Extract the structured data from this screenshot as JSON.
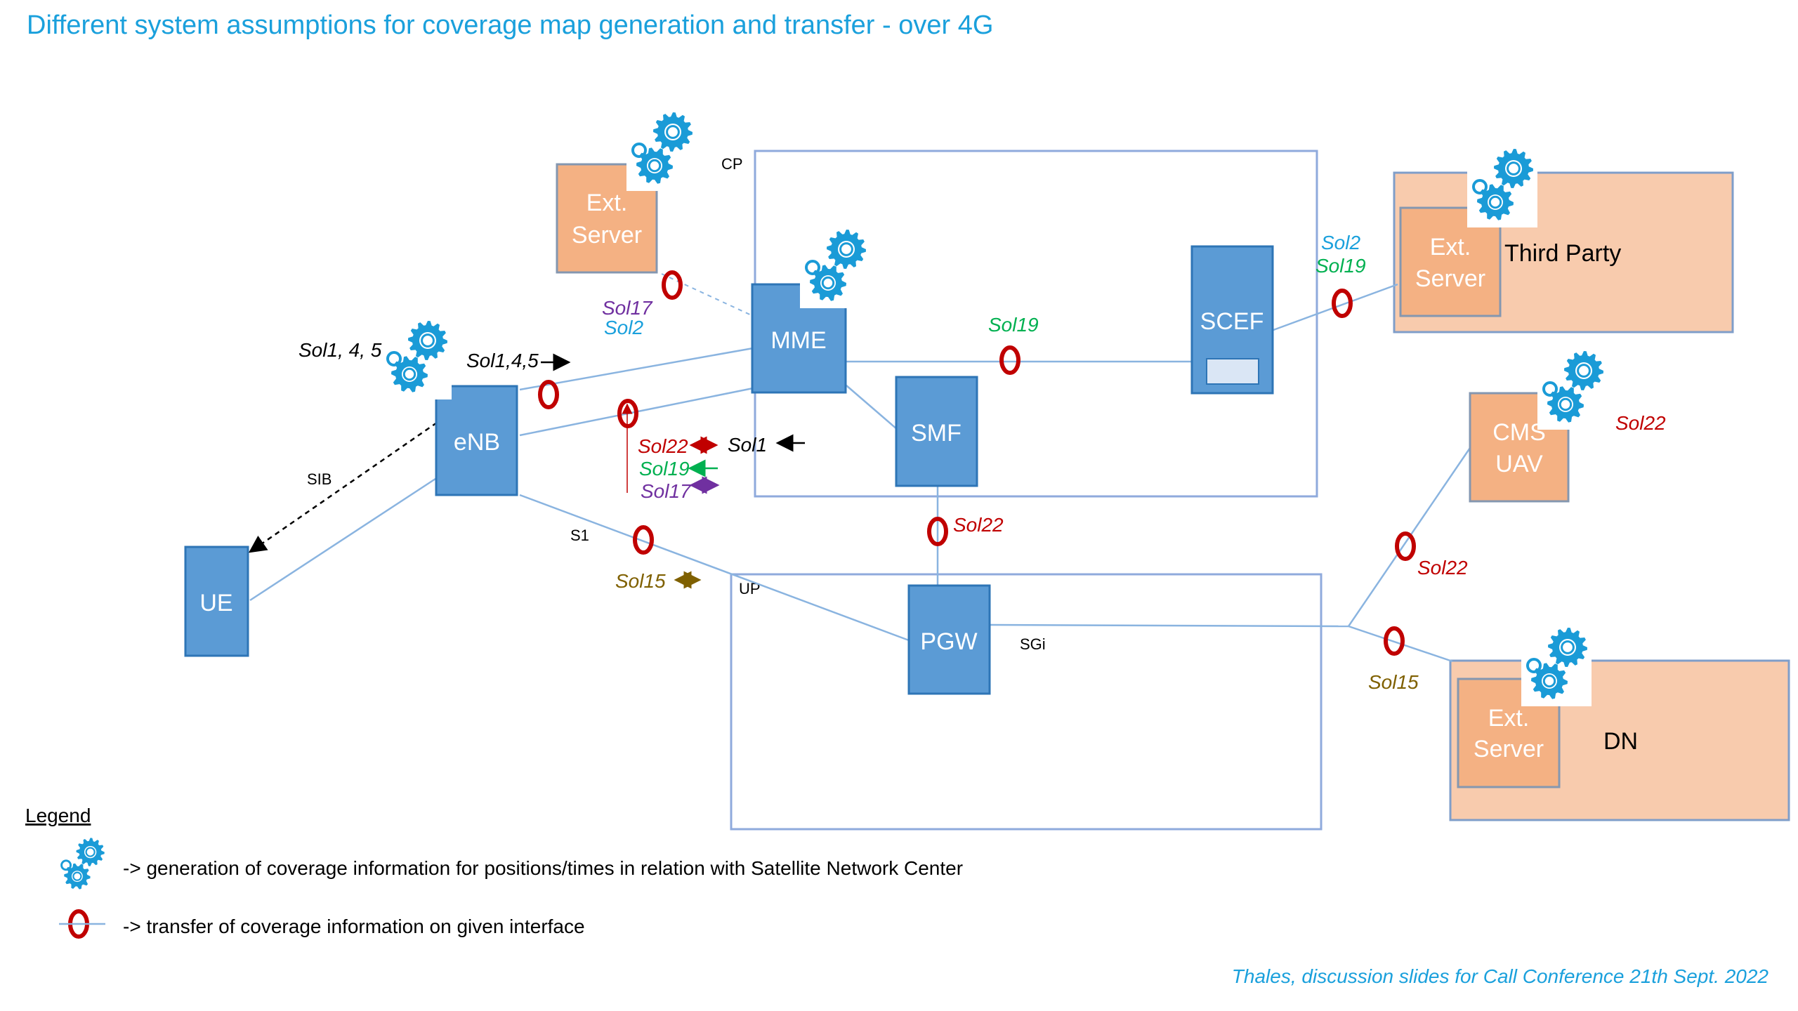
{
  "title": "Different system assumptions for coverage map generation and transfer - over 4G",
  "nodes": {
    "ext_server_top": "Ext.\nServer",
    "mme": "MME",
    "smf": "SMF",
    "scef": "SCEF",
    "enb": "eNB",
    "ue": "UE",
    "pgw": "PGW",
    "ext_server_third_party": "Ext.\nServer",
    "third_party": "Third Party",
    "cms_uav": "CMS\nUAV",
    "ext_server_dn": "Ext.\nServer",
    "dn": "DN"
  },
  "planes": {
    "cp": "CP",
    "up": "UP"
  },
  "interfaces": {
    "sib": "SIB",
    "s1": "S1",
    "sgi": "SGi"
  },
  "solutions": {
    "sol_1_4_5_gen": "Sol1, 4, 5",
    "sol_1_4_5_arrow": "Sol1,4,5",
    "sol17_mme": "Sol17",
    "sol2_mme": "Sol2",
    "sol19_mid": "Sol19",
    "sol2_tp": "Sol2",
    "sol19_tp": "Sol19",
    "sol22_a": "Sol22",
    "sol1_a": "Sol1",
    "sol19_a": "Sol19",
    "sol17_a": "Sol17",
    "sol15_s1": "Sol15",
    "sol22_smf": "Sol22",
    "sol22_cms": "Sol22",
    "sol22_link": "Sol22",
    "sol15_dn": "Sol15"
  },
  "legend": {
    "title": "Legend",
    "gear_text": "-> generation of coverage information for positions/times in relation with Satellite Network Center",
    "ring_text": "-> transfer of coverage information on given interface"
  },
  "footer": "Thales, discussion slides for Call Conference 21th Sept. 2022",
  "colors": {
    "title": "#1aa0dc",
    "node_blue": "#5b9bd5",
    "node_blue_border": "#2e75b6",
    "node_orange": "#f4b183",
    "panel_peach": "#f8cbad",
    "ring_red": "#c00000",
    "gear_blue": "#1a9bd7",
    "sol_red": "#c00000",
    "sol_green": "#00b050",
    "sol_purple": "#7030a0",
    "sol_cyan": "#1aa0dc",
    "sol_brown": "#7f6000"
  }
}
